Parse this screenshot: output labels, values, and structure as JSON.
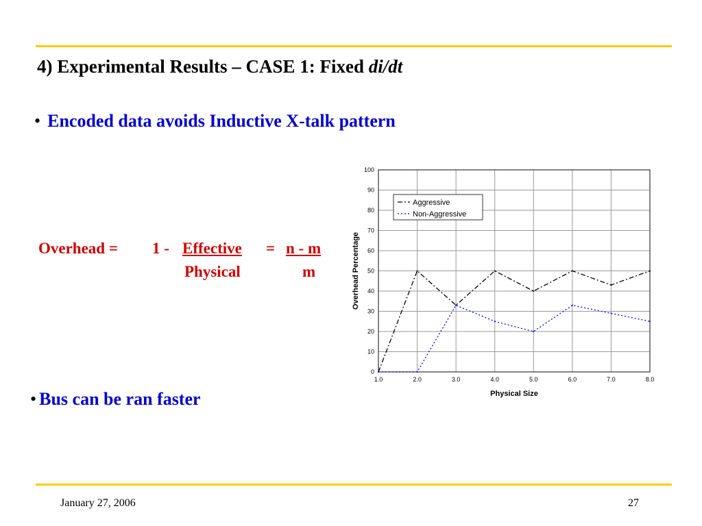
{
  "slide": {
    "title_main": "4) Experimental Results – CASE 1: Fixed ",
    "title_italic": "di/dt",
    "bullet1_dot": "•",
    "bullet1": "Encoded data avoids Inductive X-talk pattern",
    "bullet2_dot": "•",
    "bullet2": "Bus can be ran faster",
    "formula": {
      "label": "Overhead =",
      "one_minus": "1 -",
      "numerator": "Effective",
      "denominator": "Physical",
      "equals": "=",
      "rhs_numerator": "n - m",
      "rhs_denominator": "m"
    },
    "footer_date": "January 27, 2006",
    "page_number": "27"
  },
  "colors": {
    "accent_rule": "#ffcc00",
    "title": "#000000",
    "bullet": "#0000cc",
    "formula": "#cc0000",
    "aggressive": "#000000",
    "non_aggressive": "#0000ff"
  },
  "chart_data": {
    "type": "line",
    "title": "",
    "xlabel": "Physical Size",
    "ylabel": "Overhead Percentage",
    "xlim": [
      1.0,
      8.0
    ],
    "ylim": [
      0,
      100
    ],
    "x_ticks": [
      "1.0",
      "2.0",
      "3.0",
      "4.0",
      "5.0",
      "6.0",
      "7.0",
      "8.0"
    ],
    "y_ticks": [
      "0",
      "10",
      "20",
      "30",
      "40",
      "50",
      "60",
      "70",
      "80",
      "90",
      "100"
    ],
    "grid": true,
    "legend_position": "top-left",
    "series": [
      {
        "name": "Aggressive",
        "style": "dash-dot",
        "color": "#000000",
        "x": [
          1.0,
          2.0,
          3.0,
          4.0,
          5.0,
          6.0,
          7.0,
          8.0
        ],
        "y": [
          0,
          50,
          33,
          50,
          40,
          50,
          43,
          50
        ]
      },
      {
        "name": "Non-Aggressive",
        "style": "dotted",
        "color": "#0000ff",
        "x": [
          1.0,
          2.0,
          3.0,
          4.0,
          5.0,
          6.0,
          7.0,
          8.0
        ],
        "y": [
          0,
          0,
          33,
          25,
          20,
          33,
          29,
          25
        ]
      }
    ]
  }
}
